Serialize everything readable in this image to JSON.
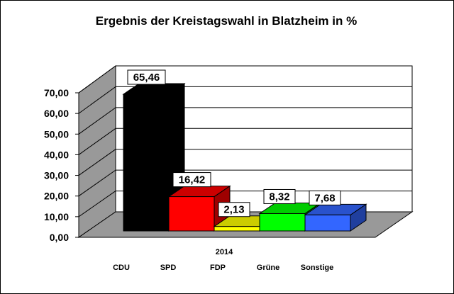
{
  "chart_data": {
    "type": "bar",
    "title": "Ergebnis der Kreistagswahl in Blatzheim in %",
    "series_label": "2014",
    "categories": [
      "CDU",
      "SPD",
      "FDP",
      "Grüne",
      "Sonstige"
    ],
    "values": [
      65.46,
      16.42,
      2.13,
      8.32,
      7.68
    ],
    "data_labels": [
      "65,46",
      "16,42",
      "2,13",
      "8,32",
      "7,68"
    ],
    "colors": [
      "#000000",
      "#ff0000",
      "#ffff00",
      "#00ff00",
      "#3366ff"
    ],
    "yticks": [
      "0,00",
      "10,00",
      "20,00",
      "30,00",
      "40,00",
      "50,00",
      "60,00",
      "70,00"
    ],
    "ylim": [
      0,
      70
    ],
    "grid": true,
    "legend": "none"
  }
}
